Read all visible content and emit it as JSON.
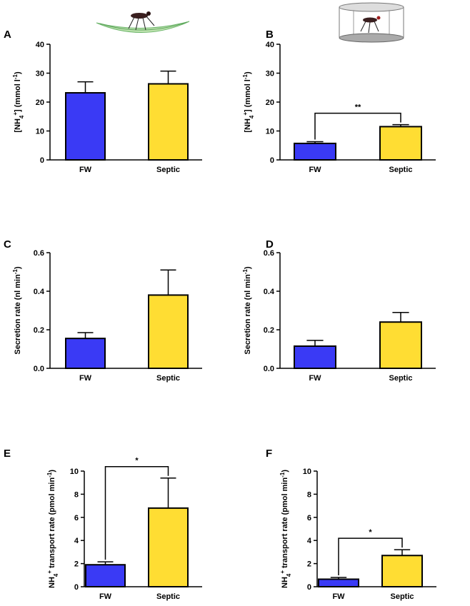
{
  "chart_data": [
    {
      "type": "bar",
      "panel": "A",
      "y_label": [
        {
          "text": "[NH"
        },
        {
          "text": "4",
          "shift": "sub"
        },
        {
          "text": "+",
          "shift": "super"
        },
        {
          "text": "] (mmol l"
        },
        {
          "text": "-1",
          "shift": "super"
        },
        {
          "text": ")"
        }
      ],
      "categories": [
        "FW",
        "Septic"
      ],
      "values": [
        23.2,
        26.3
      ],
      "errors": [
        3.8,
        4.4
      ],
      "colors": [
        "#3a3af5",
        "#ffdd33"
      ],
      "ylim": [
        0,
        40
      ],
      "yticks": [
        0,
        10,
        20,
        30,
        40
      ]
    },
    {
      "type": "bar",
      "panel": "B",
      "y_label": [
        {
          "text": "[NH"
        },
        {
          "text": "4",
          "shift": "sub"
        },
        {
          "text": "+",
          "shift": "super"
        },
        {
          "text": "] (mmol l"
        },
        {
          "text": "-1",
          "shift": "super"
        },
        {
          "text": ")"
        }
      ],
      "categories": [
        "FW",
        "Septic"
      ],
      "values": [
        5.7,
        11.5
      ],
      "errors": [
        0.6,
        0.7
      ],
      "colors": [
        "#3a3af5",
        "#ffdd33"
      ],
      "ylim": [
        0,
        40
      ],
      "yticks": [
        0,
        10,
        20,
        30,
        40
      ],
      "annotation": "**"
    },
    {
      "type": "bar",
      "panel": "C",
      "y_label": [
        {
          "text": "Secretion rate (nl min"
        },
        {
          "text": "-1",
          "shift": "super"
        },
        {
          "text": ")"
        }
      ],
      "categories": [
        "FW",
        "Septic"
      ],
      "values": [
        0.155,
        0.38
      ],
      "errors": [
        0.03,
        0.13
      ],
      "colors": [
        "#3a3af5",
        "#ffdd33"
      ],
      "ylim": [
        0,
        0.6
      ],
      "yticks": [
        {
          "value": 0,
          "label": "0.0"
        },
        0.2,
        0.4,
        0.6
      ]
    },
    {
      "type": "bar",
      "panel": "D",
      "y_label": [
        {
          "text": "Secretion rate (nl min"
        },
        {
          "text": "-1",
          "shift": "super"
        },
        {
          "text": ")"
        }
      ],
      "categories": [
        "FW",
        "Septic"
      ],
      "values": [
        0.115,
        0.24
      ],
      "errors": [
        0.03,
        0.05
      ],
      "colors": [
        "#3a3af5",
        "#ffdd33"
      ],
      "ylim": [
        0,
        0.6
      ],
      "yticks": [
        {
          "value": 0,
          "label": "0.0"
        },
        0.2,
        0.4,
        0.6
      ]
    },
    {
      "type": "bar",
      "panel": "E",
      "y_label": [
        {
          "text": "NH"
        },
        {
          "text": "4",
          "shift": "sub"
        },
        {
          "text": "+",
          "shift": "super"
        },
        {
          "text": " transport rate (pmol min"
        },
        {
          "text": "-1",
          "shift": "super"
        },
        {
          "text": ")"
        }
      ],
      "categories": [
        "FW",
        "Septic"
      ],
      "values": [
        1.9,
        6.8
      ],
      "errors": [
        0.25,
        2.6
      ],
      "colors": [
        "#3a3af5",
        "#ffdd33"
      ],
      "ylim": [
        0,
        10
      ],
      "yticks": [
        0,
        2,
        4,
        6,
        8,
        10
      ],
      "annotation": "*"
    },
    {
      "type": "bar",
      "panel": "F",
      "y_label": [
        {
          "text": "NH"
        },
        {
          "text": "4",
          "shift": "sub"
        },
        {
          "text": "+",
          "shift": "super"
        },
        {
          "text": " transport rate (pmol min"
        },
        {
          "text": "-1",
          "shift": "super"
        },
        {
          "text": ")"
        }
      ],
      "categories": [
        "FW",
        "Septic"
      ],
      "values": [
        0.65,
        2.7
      ],
      "errors": [
        0.15,
        0.5
      ],
      "colors": [
        "#3a3af5",
        "#ffdd33"
      ],
      "ylim": [
        0,
        10
      ],
      "yticks": [
        0,
        2,
        4,
        6,
        8,
        10
      ],
      "annotation": "*"
    }
  ]
}
